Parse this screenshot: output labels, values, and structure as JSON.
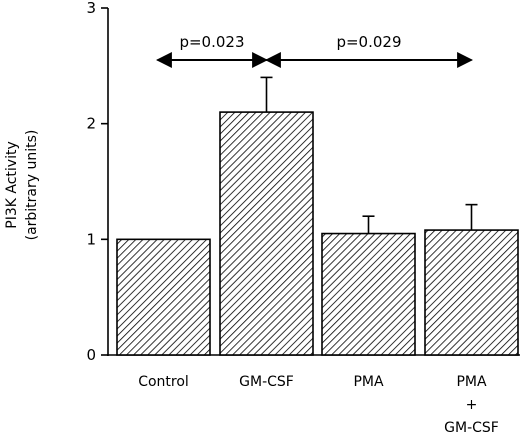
{
  "chart_data": {
    "type": "bar",
    "title": "",
    "xlabel": "",
    "ylabel": [
      "PI3K Activity",
      "(arbitrary units)"
    ],
    "ylim": [
      0,
      3
    ],
    "yticks": [
      0,
      1,
      2,
      3
    ],
    "grid": false,
    "categories": [
      [
        "Control"
      ],
      [
        "GM-CSF"
      ],
      [
        "PMA"
      ],
      [
        "PMA",
        "+",
        "GM-CSF"
      ]
    ],
    "values": [
      1.0,
      2.1,
      1.05,
      1.08
    ],
    "error_upper": [
      null,
      2.4,
      1.2,
      1.3
    ],
    "fill_pattern": "diagonal-hatch",
    "annotations": [
      {
        "text": "p=0.023",
        "from_category": 0,
        "to_category": 1
      },
      {
        "text": "p=0.029",
        "from_category": 1,
        "to_category": 3
      }
    ]
  }
}
